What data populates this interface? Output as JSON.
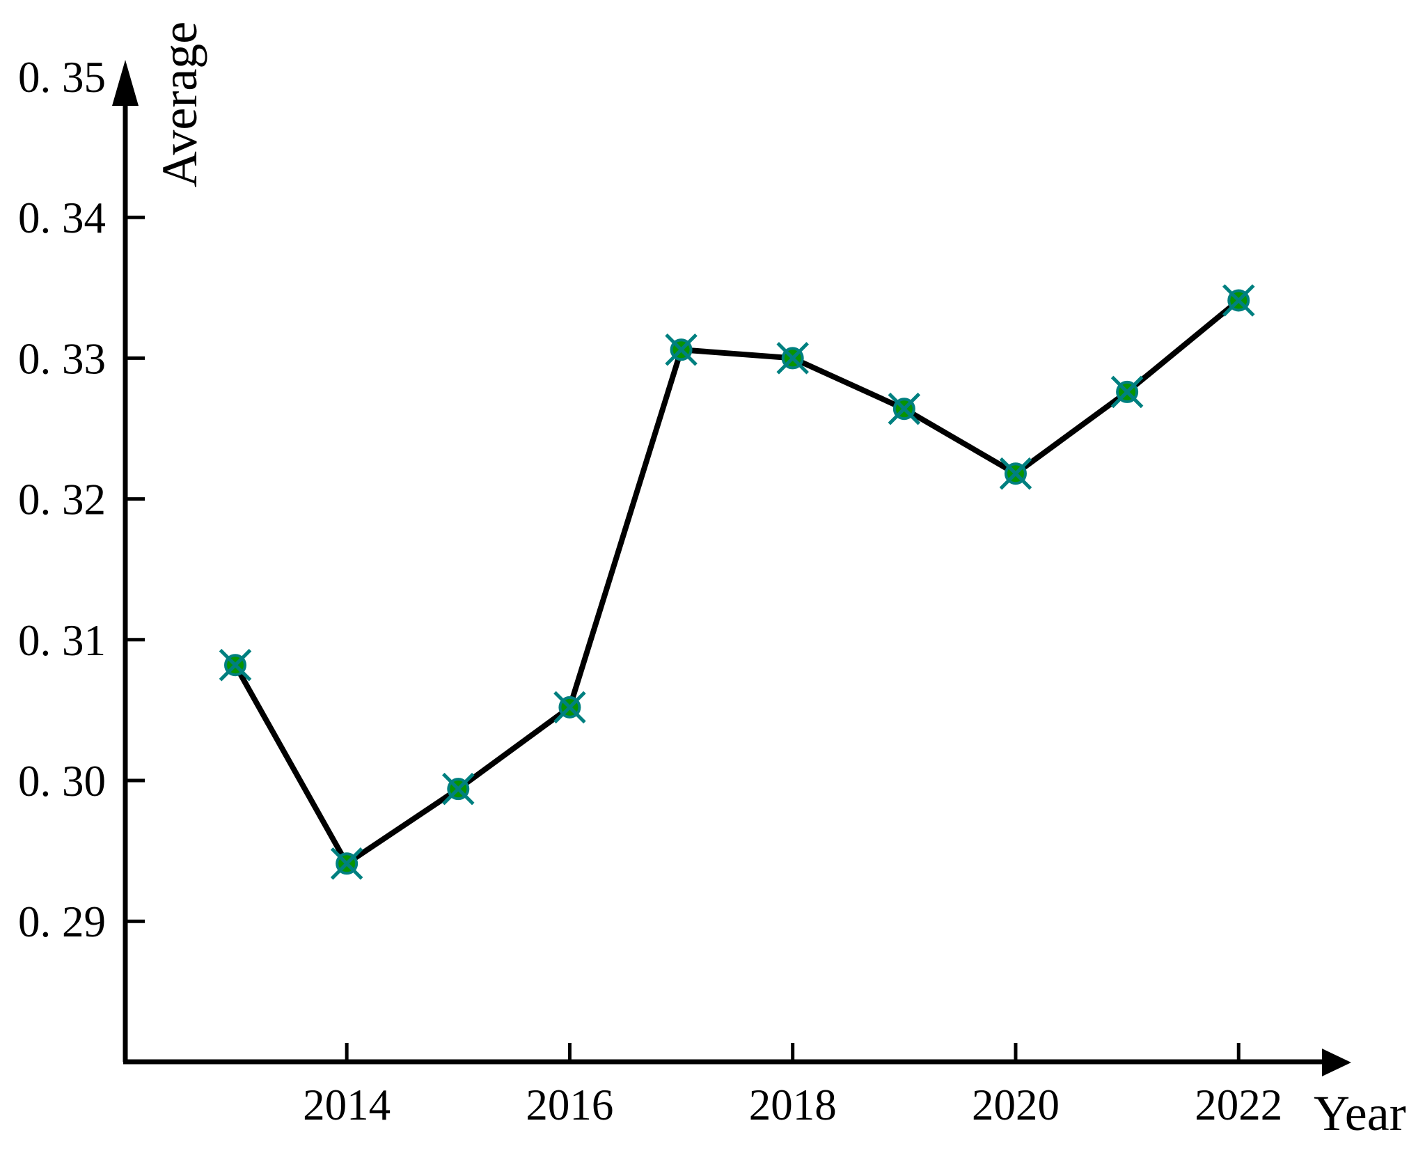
{
  "chart_data": {
    "type": "line",
    "title": "",
    "xlabel": "Year",
    "ylabel": "Average",
    "grid": false,
    "legend": "none",
    "x": [
      2013,
      2014,
      2015,
      2016,
      2017,
      2018,
      2019,
      2020,
      2021,
      2022
    ],
    "values": [
      0.3082,
      0.2941,
      0.2994,
      0.3052,
      0.3306,
      0.33,
      0.3264,
      0.3218,
      0.3276,
      0.3341
    ],
    "xlim": [
      2013,
      2022
    ],
    "ylim": [
      0.28,
      0.35
    ],
    "x_ticks": [
      {
        "value": 2014,
        "label": "2014"
      },
      {
        "value": 2016,
        "label": "2016"
      },
      {
        "value": 2018,
        "label": "2018"
      },
      {
        "value": 2020,
        "label": "2020"
      },
      {
        "value": 2022,
        "label": "2022"
      }
    ],
    "y_ticks": [
      {
        "value": 0.29,
        "label": "0. 29",
        "has_tick": true
      },
      {
        "value": 0.3,
        "label": "0. 30",
        "has_tick": true
      },
      {
        "value": 0.31,
        "label": "0. 31",
        "has_tick": true
      },
      {
        "value": 0.32,
        "label": "0. 32",
        "has_tick": true
      },
      {
        "value": 0.33,
        "label": "0. 33",
        "has_tick": true
      },
      {
        "value": 0.34,
        "label": "0. 34",
        "has_tick": true
      },
      {
        "value": 0.35,
        "label": "0. 35",
        "has_tick": false
      }
    ],
    "colors": {
      "line": "#000000",
      "axis": "#000000",
      "marker_fill": "#089400",
      "marker_cross": "#008080",
      "background": "#ffffff",
      "text": "#000000"
    }
  }
}
